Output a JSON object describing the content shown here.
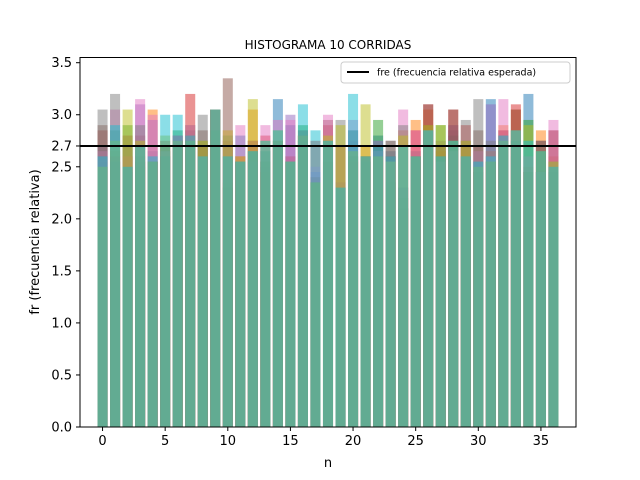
{
  "chart_data": {
    "type": "bar",
    "title": "HISTOGRAMA 10 CORRIDAS",
    "xlabel": "n",
    "ylabel": "fr (frecuencia relativa)",
    "xlim": [
      -1.8,
      37.8
    ],
    "ylim": [
      0,
      3.55
    ],
    "xticks": [
      0,
      5,
      10,
      15,
      20,
      25,
      30,
      35
    ],
    "yticks": [
      0.0,
      0.5,
      1.0,
      1.5,
      2.0,
      2.5,
      2.7,
      3.0,
      3.5
    ],
    "ytick_labels": [
      "0.0",
      "0.5",
      "1.0",
      "1.5",
      "2.0",
      "2.5",
      "2.7",
      "3.0",
      "3.5"
    ],
    "bar_alpha": 0.5,
    "categories": [
      0,
      1,
      2,
      3,
      4,
      5,
      6,
      7,
      8,
      9,
      10,
      11,
      12,
      13,
      14,
      15,
      16,
      17,
      18,
      19,
      20,
      21,
      22,
      23,
      24,
      25,
      26,
      27,
      28,
      29,
      30,
      31,
      32,
      33,
      34,
      35,
      36
    ],
    "series": [
      {
        "color": "#1f77b4",
        "values": [
          2.6,
          2.5,
          2.45,
          2.55,
          2.65,
          2.6,
          2.8,
          2.85,
          2.7,
          3.05,
          2.3,
          2.8,
          2.7,
          2.5,
          3.15,
          2.9,
          2.75,
          2.35,
          2.5,
          2.3,
          2.85,
          2.6,
          2.8,
          2.65,
          2.1,
          2.55,
          2.85,
          2.7,
          2.85,
          2.55,
          2.45,
          3.15,
          2.85,
          2.6,
          3.2,
          2.45,
          2.35
        ]
      },
      {
        "color": "#ff7f0e",
        "values": [
          2.55,
          2.65,
          2.5,
          2.55,
          3.05,
          2.7,
          2.75,
          2.8,
          2.6,
          3.05,
          2.35,
          2.6,
          3.05,
          2.45,
          2.75,
          2.55,
          2.8,
          2.4,
          2.55,
          2.35,
          2.65,
          2.7,
          2.6,
          2.6,
          2.85,
          2.95,
          3.05,
          2.65,
          2.9,
          2.7,
          2.5,
          2.65,
          2.9,
          3.05,
          2.45,
          2.85,
          2.6
        ]
      },
      {
        "color": "#2ca02c",
        "values": [
          2.5,
          2.85,
          2.9,
          2.5,
          2.55,
          2.65,
          2.85,
          2.9,
          2.75,
          3.05,
          2.3,
          2.55,
          2.75,
          2.55,
          2.7,
          2.6,
          2.9,
          2.35,
          2.55,
          2.3,
          2.6,
          2.55,
          2.95,
          2.35,
          2.1,
          2.6,
          2.9,
          2.9,
          2.8,
          2.6,
          2.45,
          2.55,
          2.75,
          2.85,
          2.95,
          2.45,
          2.45
        ]
      },
      {
        "color": "#d62728",
        "values": [
          2.85,
          2.6,
          2.6,
          2.8,
          2.55,
          2.75,
          2.8,
          3.2,
          2.7,
          3.05,
          2.75,
          2.6,
          2.75,
          2.8,
          2.7,
          2.6,
          2.8,
          2.75,
          2.9,
          2.7,
          2.55,
          2.6,
          2.65,
          2.6,
          2.3,
          2.85,
          3.1,
          2.7,
          3.05,
          2.9,
          2.7,
          2.55,
          2.85,
          3.1,
          2.45,
          2.75,
          2.85
        ]
      },
      {
        "color": "#9467bd",
        "values": [
          2.7,
          2.55,
          2.5,
          3.1,
          2.95,
          2.6,
          2.75,
          2.75,
          2.6,
          3.05,
          2.6,
          2.55,
          2.55,
          2.65,
          2.7,
          3.0,
          2.75,
          2.45,
          2.7,
          2.35,
          2.75,
          2.55,
          2.75,
          2.6,
          2.3,
          2.6,
          2.85,
          2.6,
          2.9,
          2.6,
          2.55,
          3.1,
          2.75,
          2.75,
          2.6,
          2.45,
          2.55
        ]
      },
      {
        "color": "#8c564b",
        "values": [
          2.9,
          2.55,
          2.8,
          2.6,
          2.55,
          2.7,
          2.75,
          2.75,
          2.85,
          3.05,
          3.35,
          2.55,
          2.65,
          2.55,
          2.75,
          2.55,
          2.85,
          2.4,
          2.95,
          2.3,
          2.6,
          2.6,
          2.7,
          2.75,
          2.2,
          2.65,
          3.1,
          2.6,
          3.05,
          2.75,
          2.85,
          2.55,
          2.8,
          3.05,
          2.5,
          2.75,
          2.85
        ]
      },
      {
        "color": "#e377c2",
        "values": [
          2.65,
          3.05,
          2.6,
          3.15,
          3.0,
          2.65,
          2.8,
          2.9,
          2.6,
          3.05,
          2.85,
          2.9,
          2.75,
          2.9,
          2.95,
          2.95,
          2.8,
          2.5,
          3.0,
          2.35,
          2.95,
          2.6,
          2.65,
          2.55,
          3.05,
          2.85,
          2.85,
          2.55,
          2.65,
          2.6,
          2.65,
          2.6,
          3.15,
          2.85,
          2.6,
          2.45,
          2.95
        ]
      },
      {
        "color": "#7f7f7f",
        "values": [
          3.05,
          3.2,
          2.7,
          2.9,
          2.55,
          2.6,
          2.7,
          2.75,
          3.0,
          2.85,
          2.8,
          2.55,
          2.65,
          2.65,
          2.75,
          2.55,
          2.8,
          2.35,
          2.75,
          2.95,
          2.85,
          2.6,
          2.65,
          2.75,
          2.9,
          2.6,
          2.85,
          2.75,
          2.75,
          2.95,
          3.15,
          2.75,
          2.7,
          2.75,
          2.45,
          2.75,
          2.55
        ]
      },
      {
        "color": "#bcbd22",
        "values": [
          2.5,
          2.75,
          3.05,
          2.75,
          2.55,
          2.8,
          2.75,
          2.75,
          2.75,
          3.05,
          2.85,
          2.6,
          3.15,
          2.75,
          2.85,
          2.55,
          2.8,
          2.35,
          2.8,
          2.9,
          2.65,
          3.1,
          2.6,
          2.55,
          2.8,
          2.6,
          2.9,
          2.9,
          2.75,
          2.75,
          2.5,
          2.55,
          2.75,
          2.85,
          2.9,
          2.65,
          2.55
        ]
      },
      {
        "color": "#17becf",
        "values": [
          2.6,
          2.9,
          2.5,
          2.7,
          2.6,
          3.0,
          3.0,
          2.8,
          2.6,
          3.05,
          2.6,
          2.55,
          2.65,
          2.75,
          2.85,
          2.55,
          3.1,
          2.85,
          2.75,
          2.3,
          3.2,
          2.6,
          2.7,
          2.6,
          2.7,
          2.6,
          2.85,
          2.6,
          2.75,
          2.6,
          2.55,
          2.6,
          2.8,
          2.85,
          2.75,
          2.65,
          2.5
        ]
      }
    ],
    "reference_line": {
      "y": 2.7,
      "label": "fre (frecuencia relativa esperada)",
      "color": "#000000"
    },
    "legend": {
      "placement": "top-right"
    },
    "grid": false
  }
}
